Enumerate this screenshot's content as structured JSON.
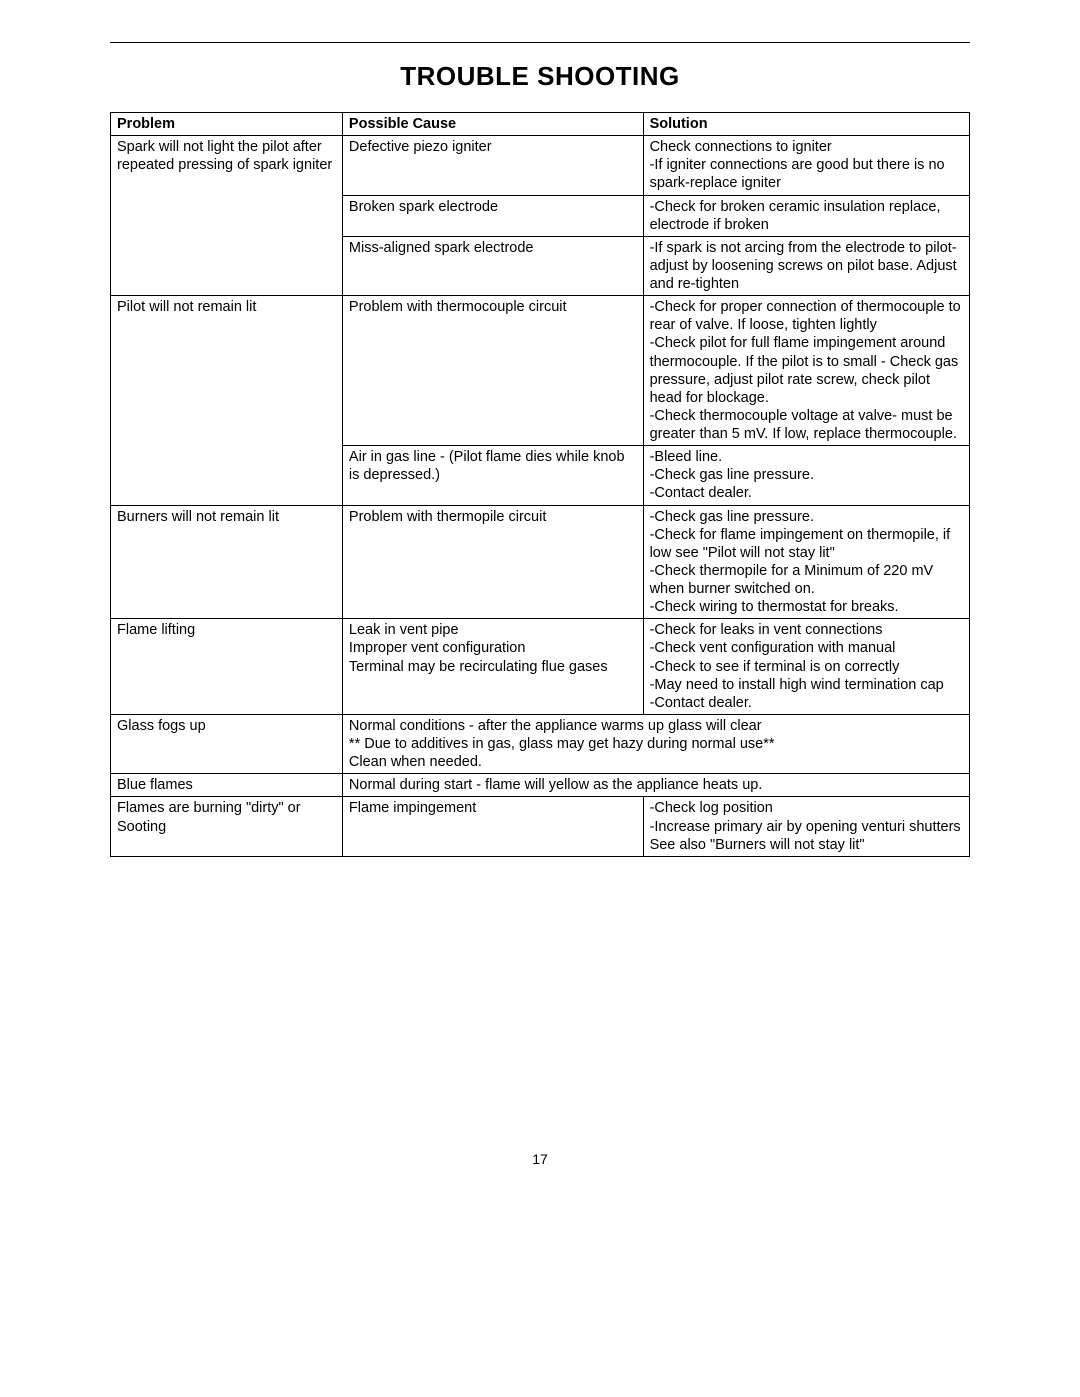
{
  "title": "TROUBLE SHOOTING",
  "headers": {
    "problem": "Problem",
    "cause": "Possible Cause",
    "solution": "Solution"
  },
  "page_number": "17",
  "rows": [
    {
      "problem": "Spark will not light the pilot after repeated pressing of spark igniter",
      "cause": "Defective piezo igniter",
      "solution": "Check connections to igniter\n-If igniter connections are good but there is no spark-replace igniter",
      "sep": false
    },
    {
      "problem": "",
      "cause": "Broken spark electrode",
      "solution": "-Check for broken ceramic insulation replace, electrode if broken",
      "sep": false,
      "cause_top": true,
      "solution_top": true
    },
    {
      "problem": "",
      "cause": "Miss-aligned spark electrode",
      "solution": "-If spark is not arcing from the electrode to pilot- adjust by loosening screws on pilot base.  Adjust and re-tighten",
      "sep": true,
      "cause_top": true,
      "solution_top": true
    },
    {
      "problem": "Pilot will not remain lit",
      "cause": "Problem with thermocouple circuit",
      "solution": "-Check for proper connection of thermocouple to rear of valve.  If loose, tighten lightly\n-Check pilot for full flame impingement around thermocouple.  If the pilot is to small - Check gas pressure, adjust pilot rate screw, check pilot head for blockage.\n-Check thermocouple voltage at valve- must be greater than 5 mV.  If low, replace thermocouple.",
      "sep": false
    },
    {
      "problem": "",
      "cause": "Air in gas line - (Pilot flame dies while knob is depressed.)",
      "solution": "-Bleed line.\n-Check gas line pressure.\n-Contact dealer.",
      "sep": true,
      "cause_top": true,
      "solution_top": true
    },
    {
      "problem": "Burners will not remain lit",
      "cause": "Problem with thermopile circuit",
      "solution": "-Check gas line pressure.\n-Check for flame impingement on thermopile, if low see \"Pilot will not stay lit\"\n-Check thermopile for a Minimum of 220 mV        when burner switched on.\n-Check wiring to thermostat for breaks.",
      "sep": true
    },
    {
      "problem": "Flame lifting",
      "cause": "Leak in vent pipe\nImproper vent configuration\nTerminal may be recirculating flue gases",
      "solution": "-Check for leaks in vent connections\n-Check vent configuration with manual\n-Check to see if terminal is on correctly\n-May need to install high wind termination cap\n-Contact dealer.",
      "sep": true
    },
    {
      "problem": "Glass fogs up",
      "cause_span": "Normal conditions - after the appliance warms up glass will clear\n** Due to additives in gas, glass may get hazy during normal use**\nClean when needed.",
      "sep": true
    },
    {
      "problem": "Blue flames",
      "cause_span": "Normal during start - flame will yellow as the appliance heats up.",
      "sep": true
    },
    {
      "problem": "Flames are burning \"dirty\" or Sooting",
      "cause": "Flame impingement",
      "solution": "-Check log position\n-Increase primary air by opening venturi shutters\nSee also \"Burners will not stay lit\"",
      "sep": false
    }
  ]
}
